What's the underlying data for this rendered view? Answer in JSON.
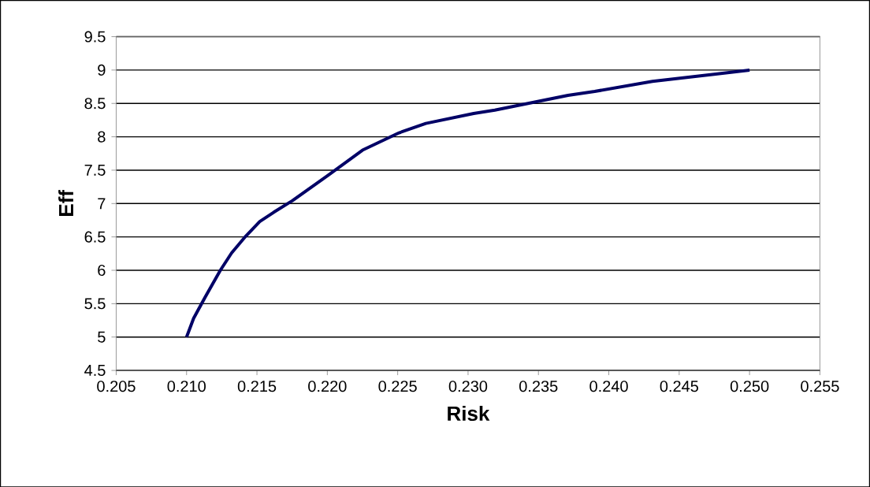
{
  "chart_data": {
    "type": "line",
    "xlabel": "Risk",
    "ylabel": "Eff",
    "xlim": [
      0.205,
      0.255
    ],
    "xticks": [
      {
        "value": 0.205,
        "label": "0.205"
      },
      {
        "value": 0.21,
        "label": "0.210"
      },
      {
        "value": 0.215,
        "label": "0.215"
      },
      {
        "value": 0.22,
        "label": "0.220"
      },
      {
        "value": 0.225,
        "label": "0.225"
      },
      {
        "value": 0.23,
        "label": "0.230"
      },
      {
        "value": 0.235,
        "label": "0.235"
      },
      {
        "value": 0.24,
        "label": "0.240"
      },
      {
        "value": 0.245,
        "label": "0.245"
      },
      {
        "value": 0.25,
        "label": "0.250"
      },
      {
        "value": 0.255,
        "label": "0.255"
      }
    ],
    "ylim": [
      4.5,
      9.5
    ],
    "yticks": [
      4.5,
      5,
      5.5,
      6,
      6.5,
      7,
      7.5,
      8,
      8.5,
      9,
      9.5
    ],
    "grid": "y",
    "marker": "none",
    "line_style": "solid",
    "series": [
      {
        "color": "#000066",
        "x": [
          0.21,
          0.2105,
          0.2113,
          0.2124,
          0.2132,
          0.2142,
          0.2152,
          0.2162,
          0.2175,
          0.2201,
          0.2225,
          0.2251,
          0.227,
          0.2304,
          0.2319,
          0.2371,
          0.239,
          0.2431,
          0.2476,
          0.25
        ],
        "values": [
          5.0,
          5.28,
          5.59,
          6.0,
          6.26,
          6.51,
          6.73,
          6.87,
          7.04,
          7.43,
          7.8,
          8.06,
          8.2,
          8.35,
          8.4,
          8.62,
          8.68,
          8.83,
          8.94,
          9.0
        ]
      }
    ]
  }
}
